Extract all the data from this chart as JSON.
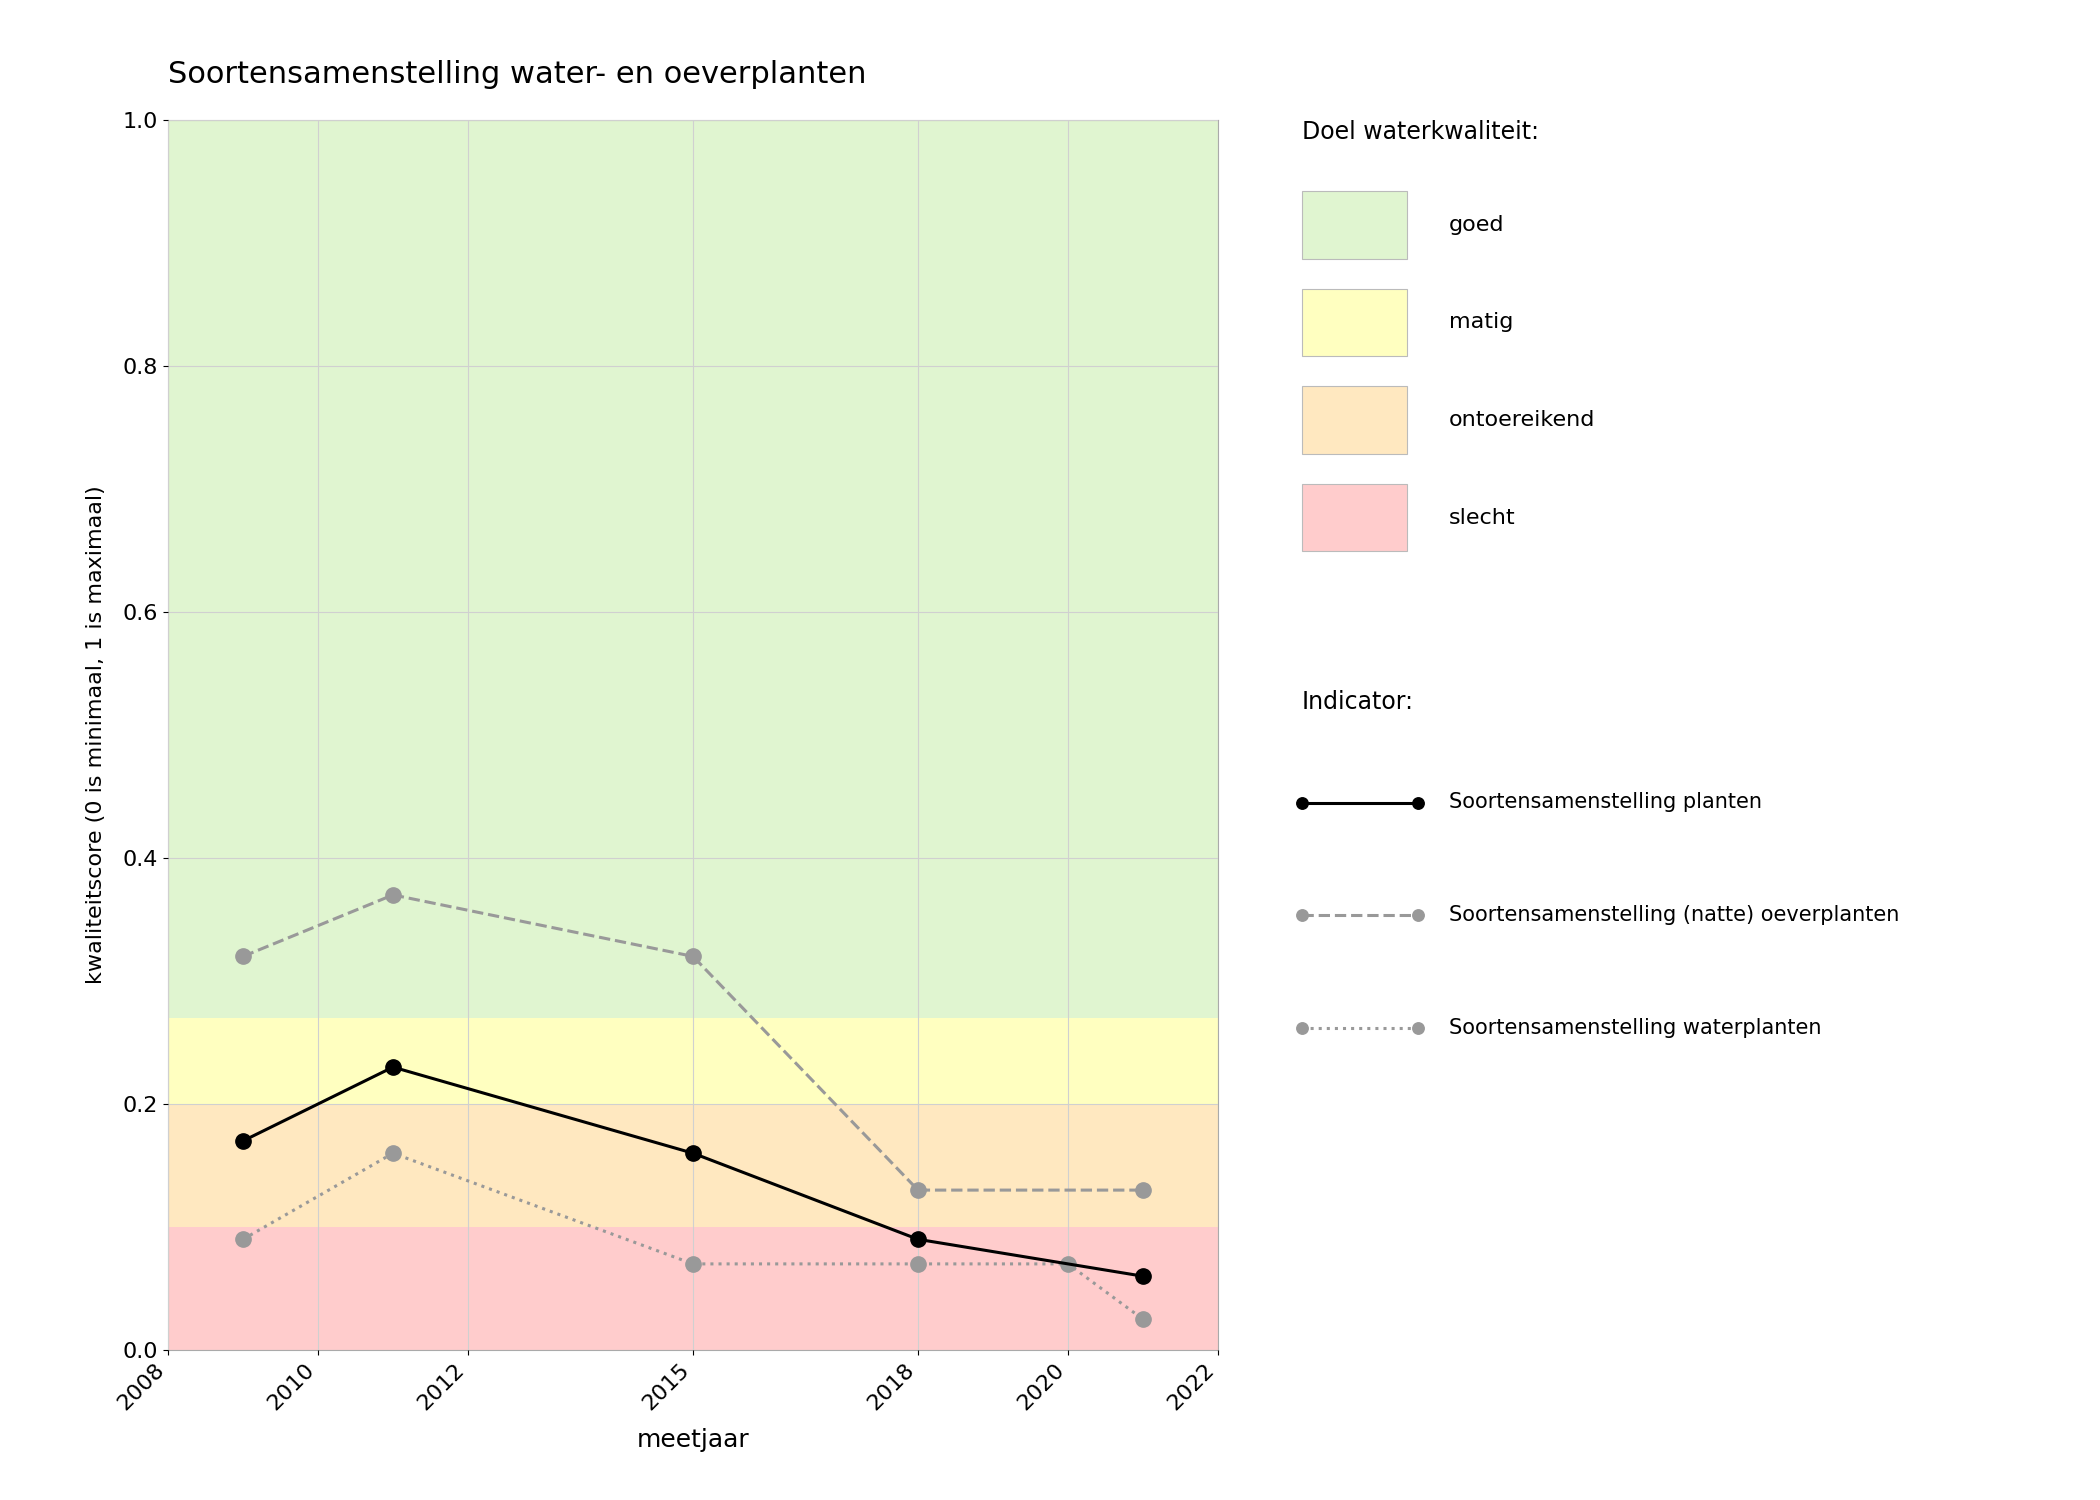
{
  "title": "Soortensamenstelling water- en oeverplanten",
  "xlabel": "meetjaar",
  "ylabel": "kwaliteitscore (0 is minimaal, 1 is maximaal)",
  "xlim": [
    2008,
    2022
  ],
  "ylim": [
    0.0,
    1.0
  ],
  "xticks": [
    2008,
    2010,
    2012,
    2015,
    2018,
    2020,
    2022
  ],
  "yticks": [
    0.0,
    0.2,
    0.4,
    0.6,
    0.8,
    1.0
  ],
  "bg_bands": [
    {
      "ymin": 0.0,
      "ymax": 0.1,
      "color": "#ffcccc",
      "label": "slecht"
    },
    {
      "ymin": 0.1,
      "ymax": 0.2,
      "color": "#ffe8c0",
      "label": "ontoereikend"
    },
    {
      "ymin": 0.2,
      "ymax": 0.27,
      "color": "#ffffc0",
      "label": "matig"
    },
    {
      "ymin": 0.27,
      "ymax": 1.0,
      "color": "#e0f5d0",
      "label": "goed"
    }
  ],
  "legend_quality_labels": [
    "goed",
    "matig",
    "ontoereikend",
    "slecht"
  ],
  "legend_quality_colors": [
    "#e0f5d0",
    "#ffffc0",
    "#ffe8c0",
    "#ffcccc"
  ],
  "series": {
    "planten": {
      "x": [
        2009,
        2011,
        2015,
        2018,
        2021
      ],
      "y": [
        0.17,
        0.23,
        0.16,
        0.09,
        0.06
      ],
      "color": "#000000",
      "linestyle": "-",
      "marker": "o",
      "markersize": 11,
      "linewidth": 2.2,
      "label": "Soortensamenstelling planten"
    },
    "oeverplanten": {
      "x": [
        2009,
        2011,
        2015,
        2018,
        2021
      ],
      "y": [
        0.32,
        0.37,
        0.32,
        0.13,
        0.13
      ],
      "color": "#999999",
      "linestyle": "--",
      "marker": "o",
      "markersize": 11,
      "linewidth": 2.2,
      "label": "Soortensamenstelling (natte) oeverplanten"
    },
    "waterplanten": {
      "x": [
        2009,
        2011,
        2015,
        2018,
        2020,
        2021
      ],
      "y": [
        0.09,
        0.16,
        0.07,
        0.07,
        0.07,
        0.025
      ],
      "color": "#999999",
      "linestyle": ":",
      "marker": "o",
      "markersize": 11,
      "linewidth": 2.2,
      "label": "Soortensamenstelling waterplanten"
    }
  },
  "legend_title_quality": "Doel waterkwaliteit:",
  "legend_title_indicator": "Indicator:",
  "background_color": "#ffffff",
  "grid_color": "#d0d0d0"
}
